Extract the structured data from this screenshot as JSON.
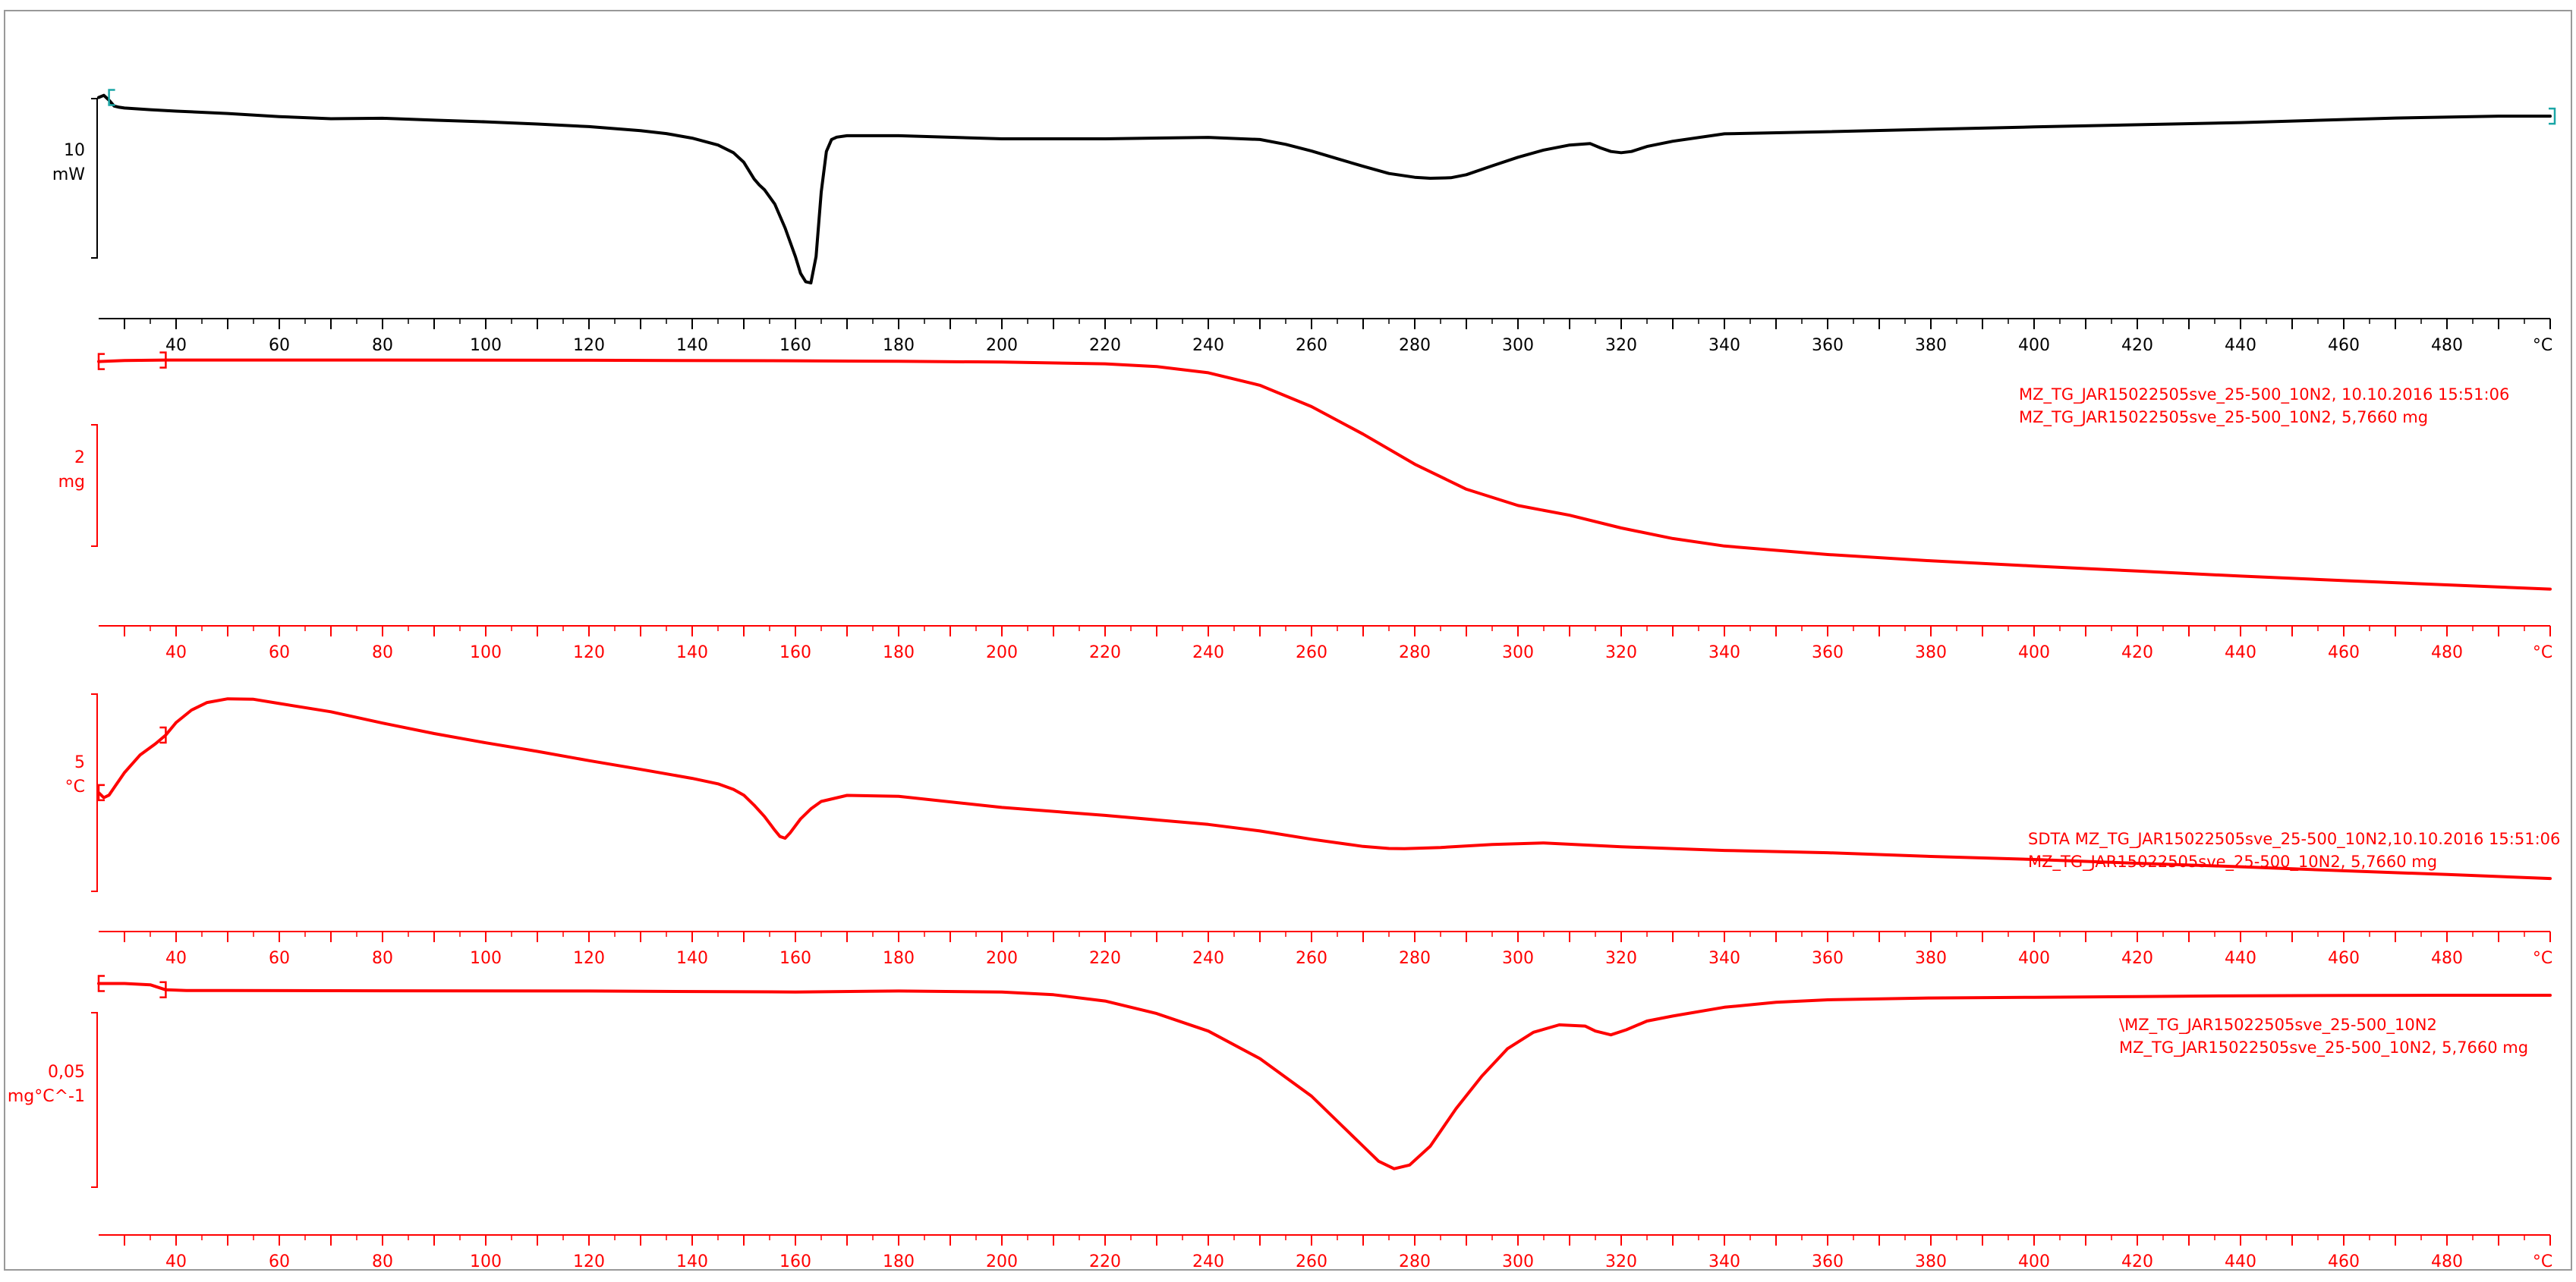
{
  "x_axis": {
    "min": 25,
    "max": 500,
    "ticks": [
      40,
      60,
      80,
      100,
      120,
      140,
      160,
      180,
      200,
      220,
      240,
      260,
      280,
      300,
      320,
      340,
      360,
      380,
      400,
      420,
      440,
      460,
      480
    ],
    "unit_label": "°C"
  },
  "chart_data": [
    {
      "type": "line",
      "color": "#000000",
      "scale_bar": {
        "value": "10",
        "unit": "mW"
      },
      "legend": [],
      "ylim": [
        0,
        100
      ],
      "x": [
        25,
        26,
        27,
        28,
        29,
        30,
        35,
        40,
        50,
        60,
        70,
        80,
        90,
        100,
        110,
        120,
        130,
        135,
        140,
        145,
        148,
        150,
        152,
        153,
        154,
        156,
        158,
        160,
        161,
        162,
        163,
        164,
        165,
        166,
        167,
        168,
        170,
        180,
        200,
        220,
        240,
        250,
        255,
        260,
        265,
        270,
        275,
        280,
        283,
        287,
        290,
        295,
        300,
        305,
        310,
        314,
        316,
        318,
        320,
        322,
        325,
        330,
        340,
        360,
        400,
        440,
        470,
        490,
        500
      ],
      "y": [
        84.6,
        85.5,
        83.5,
        81.0,
        80.5,
        80.2,
        79.5,
        78.9,
        77.9,
        76.6,
        75.7,
        75.9,
        75.1,
        74.4,
        73.5,
        72.4,
        70.7,
        69.5,
        67.6,
        64.7,
        61.5,
        57.5,
        50.5,
        48.0,
        46.0,
        40.0,
        30.0,
        18.0,
        11.0,
        7.5,
        7.0,
        18.0,
        45.0,
        62.0,
        67.0,
        68.0,
        68.6,
        68.6,
        67.3,
        67.3,
        67.9,
        67.0,
        65.0,
        62.2,
        59.0,
        55.8,
        52.8,
        51.2,
        50.8,
        51.0,
        52.3,
        56.0,
        59.6,
        62.6,
        64.7,
        65.3,
        63.5,
        62.0,
        61.5,
        62.0,
        64.1,
        66.3,
        69.4,
        70.3,
        72.3,
        74.1,
        76.0,
        76.8,
        76.8
      ]
    },
    {
      "type": "line",
      "color": "#ff0000",
      "scale_bar": {
        "value": "2",
        "unit": "mg"
      },
      "legend": [
        "MZ_TG_JAR15022505sve_25-500_10N2, 10.10.2016 15:51:06",
        "MZ_TG_JAR15022505sve_25-500_10N2, 5,7660 mg"
      ],
      "ylim": [
        0,
        100
      ],
      "x": [
        25,
        30,
        38,
        50,
        80,
        120,
        160,
        180,
        200,
        220,
        230,
        240,
        250,
        260,
        270,
        280,
        290,
        300,
        310,
        320,
        330,
        340,
        360,
        380,
        400,
        420,
        440,
        460,
        480,
        500
      ],
      "y": [
        98.0,
        98.4,
        98.6,
        98.6,
        98.6,
        98.5,
        98.3,
        98.1,
        97.8,
        97.1,
        96.0,
        93.5,
        88.5,
        80.0,
        69.0,
        57.0,
        47.0,
        40.5,
        36.6,
        31.5,
        27.3,
        24.3,
        20.9,
        18.4,
        16.3,
        14.3,
        12.3,
        10.5,
        8.8,
        7.1
      ]
    },
    {
      "type": "line",
      "color": "#ff0000",
      "scale_bar": {
        "value": "5",
        "unit": "°C"
      },
      "legend": [
        "SDTA MZ_TG_JAR15022505sve_25-500_10N2,10.10.2016 15:51:06",
        "MZ_TG_JAR15022505sve_25-500_10N2, 5,7660 mg"
      ],
      "ylim": [
        0,
        100
      ],
      "x": [
        25,
        26,
        27,
        28,
        30,
        33,
        36,
        38,
        40,
        43,
        46,
        50,
        55,
        60,
        70,
        80,
        90,
        100,
        110,
        120,
        130,
        140,
        145,
        148,
        150,
        152,
        154,
        156,
        157,
        158,
        159,
        161,
        163,
        165,
        170,
        180,
        200,
        220,
        240,
        250,
        260,
        270,
        275,
        278,
        285,
        295,
        305,
        320,
        340,
        360,
        380,
        400,
        420,
        440,
        460,
        480,
        500
      ],
      "y": [
        47.0,
        45.0,
        46.0,
        49.0,
        55.0,
        62.0,
        66.5,
        70.0,
        75.0,
        80.0,
        83.0,
        84.5,
        84.3,
        82.6,
        79.3,
        74.8,
        70.6,
        66.9,
        63.5,
        59.8,
        56.3,
        52.7,
        50.5,
        48.3,
        46.0,
        42.0,
        37.5,
        32.0,
        29.5,
        28.8,
        31.0,
        36.5,
        40.5,
        43.5,
        45.9,
        45.5,
        41.1,
        37.9,
        34.3,
        31.7,
        28.4,
        25.5,
        24.7,
        24.6,
        25.1,
        26.3,
        26.9,
        25.4,
        23.9,
        23.0,
        21.5,
        20.3,
        18.8,
        17.4,
        15.8,
        14.3,
        12.7
      ]
    },
    {
      "type": "line",
      "color": "#ff0000",
      "scale_bar": {
        "value": "0,05",
        "unit": "mg°C^-1"
      },
      "legend": [
        "\\MZ_TG_JAR15022505sve_25-500_10N2",
        "MZ_TG_JAR15022505sve_25-500_10N2, 5,7660 mg"
      ],
      "ylim": [
        0,
        100
      ],
      "x": [
        25,
        30,
        35,
        38,
        42,
        50,
        80,
        120,
        160,
        180,
        200,
        210,
        220,
        230,
        240,
        250,
        260,
        265,
        270,
        273,
        276,
        279,
        283,
        288,
        293,
        298,
        303,
        308,
        313,
        315,
        318,
        321,
        325,
        330,
        340,
        350,
        360,
        380,
        400,
        420,
        440,
        460,
        480,
        500
      ],
      "y": [
        95.0,
        95.0,
        94.5,
        92.5,
        92.2,
        92.2,
        92.1,
        92.0,
        91.6,
        92.0,
        91.6,
        90.5,
        88.0,
        83.0,
        76.0,
        65.0,
        50.0,
        40.0,
        30.0,
        24.0,
        21.0,
        22.5,
        30.0,
        45.0,
        58.0,
        69.0,
        75.5,
        78.5,
        78.0,
        76.0,
        74.5,
        76.5,
        80.0,
        82.0,
        85.5,
        87.5,
        88.5,
        89.2,
        89.5,
        89.8,
        90.1,
        90.2,
        90.3,
        90.3
      ]
    }
  ]
}
